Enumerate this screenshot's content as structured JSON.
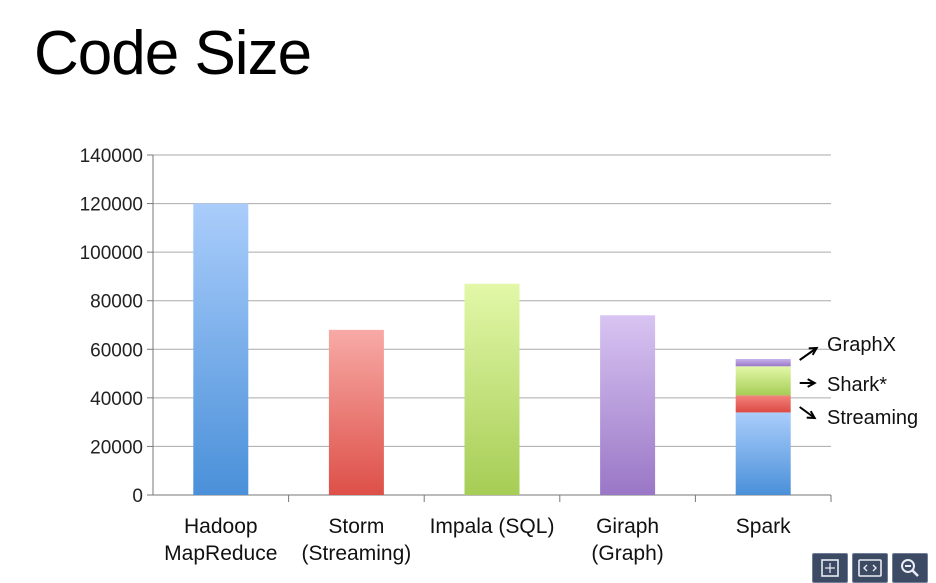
{
  "title": "Code Size",
  "chart_data": {
    "type": "bar",
    "categories": [
      "Hadoop\nMapReduce",
      "Storm\n(Streaming)",
      "Impala (SQL)",
      "Giraph\n(Graph)",
      "Spark"
    ],
    "values": [
      120000,
      68000,
      87000,
      74000,
      56000
    ],
    "ylim": [
      0,
      140000
    ],
    "yticks": [
      0,
      20000,
      40000,
      60000,
      80000,
      100000,
      120000,
      140000
    ],
    "grid": true,
    "colors": [
      [
        "#aacdfb",
        "#4a90d9"
      ],
      [
        "#f8aaa6",
        "#dd5048"
      ],
      [
        "#e2f8a8",
        "#a6cd55"
      ],
      [
        "#d8c4f2",
        "#9a77c6"
      ],
      [
        "#aacdfb",
        "#4a90d9"
      ]
    ],
    "stacked_bar": {
      "category": "Spark",
      "segments": [
        {
          "name": "",
          "from": 0,
          "to": 34000,
          "colors": [
            "#aacdfb",
            "#4a90d9"
          ]
        },
        {
          "name": "Streaming",
          "from": 34000,
          "to": 41000,
          "colors": [
            "#f3837c",
            "#dd4a44"
          ]
        },
        {
          "name": "Shark*",
          "from": 41000,
          "to": 53000,
          "colors": [
            "#e2f8a8",
            "#a6cd55"
          ]
        },
        {
          "name": "GraphX",
          "from": 53000,
          "to": 56000,
          "colors": [
            "#c7b2ec",
            "#9a77c6"
          ]
        }
      ]
    },
    "annotations": [
      "GraphX",
      "Shark*",
      "Streaming"
    ]
  },
  "controls": [
    {
      "icon": "fit-screen-icon"
    },
    {
      "icon": "code-brackets-icon"
    },
    {
      "icon": "zoom-out-icon"
    }
  ]
}
